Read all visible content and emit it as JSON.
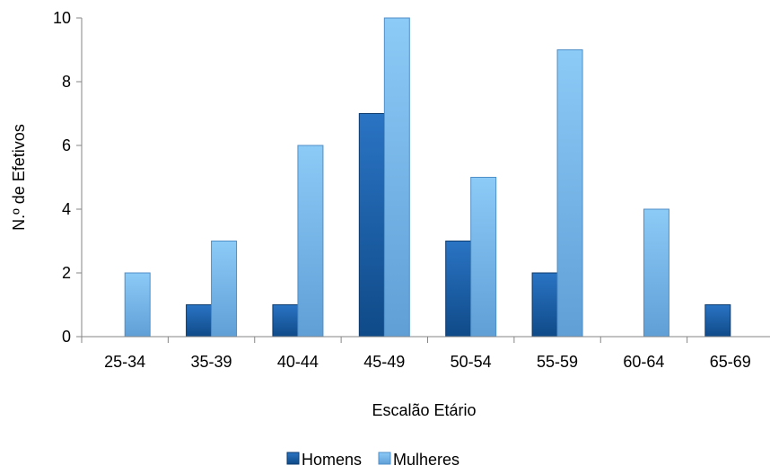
{
  "chart_data": {
    "type": "bar",
    "categories": [
      "25-34",
      "35-39",
      "40-44",
      "45-49",
      "50-54",
      "55-59",
      "60-64",
      "65-69"
    ],
    "series": [
      {
        "name": "Homens",
        "values": [
          0,
          1,
          1,
          7,
          3,
          2,
          0,
          1
        ],
        "color": "#1a5fa8"
      },
      {
        "name": "Mulheres",
        "values": [
          2,
          3,
          6,
          10,
          5,
          9,
          4,
          0
        ],
        "color": "#79b8ec"
      }
    ],
    "title": "",
    "xlabel": "Escalão Etário",
    "ylabel": "N.º de Efetivos",
    "ylim": [
      0,
      10
    ],
    "yticks": [
      "0",
      "2",
      "4",
      "6",
      "8",
      "10"
    ],
    "grid": false,
    "legend_position": "bottom"
  }
}
